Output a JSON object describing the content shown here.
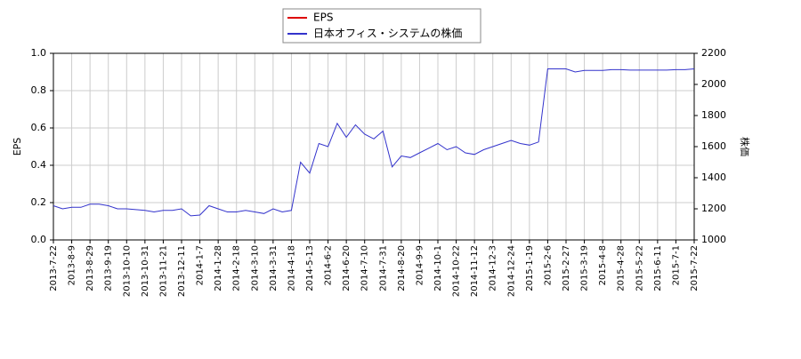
{
  "chart_data": {
    "type": "line",
    "categories": [
      "2013-7-22",
      null,
      "2013-8-9",
      null,
      "2013-8-29",
      null,
      "2013-9-19",
      null,
      "2013-10-10",
      null,
      "2013-10-31",
      null,
      "2013-11-21",
      null,
      "2013-12-11",
      null,
      "2014-1-7",
      null,
      "2014-1-28",
      null,
      "2014-2-18",
      null,
      "2014-3-10",
      null,
      "2014-3-31",
      null,
      "2014-4-18",
      null,
      "2014-5-13",
      null,
      "2014-6-2",
      null,
      "2014-6-20",
      null,
      "2014-7-10",
      null,
      "2014-7-31",
      null,
      "2014-8-20",
      null,
      "2014-9-9",
      null,
      "2014-10-1",
      null,
      "2014-10-22",
      null,
      "2014-11-12",
      null,
      "2014-12-3",
      null,
      "2014-12-24",
      null,
      "2015-1-19",
      null,
      "2015-2-6",
      null,
      "2015-2-27",
      null,
      "2015-3-19",
      null,
      "2015-4-8",
      null,
      "2015-4-28",
      null,
      "2015-5-22",
      null,
      "2015-6-11",
      null,
      "2015-7-1",
      null,
      "2015-7-22"
    ],
    "series": [
      {
        "name": "EPS",
        "color": "#dd0000",
        "values": [
          null,
          null,
          null,
          null,
          null,
          null,
          null,
          null,
          null,
          null,
          null,
          null,
          null,
          null,
          null,
          null,
          null,
          null,
          null,
          null,
          null,
          null,
          null,
          null,
          null,
          null,
          null,
          null,
          null,
          null,
          null,
          null,
          null,
          null,
          null,
          null,
          null,
          null,
          null,
          null,
          null,
          null,
          null,
          null,
          null,
          null,
          null,
          null,
          null,
          null,
          null,
          null,
          null,
          null,
          null,
          null,
          null,
          null,
          null,
          null,
          null,
          null,
          null,
          null,
          null,
          null,
          null,
          null,
          null,
          null,
          null
        ]
      },
      {
        "name": "日本オフィス・システムの株価",
        "color": "#3333cc",
        "axis": "y2",
        "values": [
          1220,
          1200,
          1210,
          1210,
          1230,
          1230,
          1220,
          1200,
          1200,
          1195,
          1190,
          1180,
          1190,
          1190,
          1200,
          1155,
          1160,
          1220,
          1200,
          1180,
          1180,
          1190,
          1180,
          1170,
          1200,
          1180,
          1190,
          1500,
          1430,
          1620,
          1600,
          1750,
          1660,
          1740,
          1680,
          1650,
          1700,
          1470,
          1540,
          1530,
          1560,
          1590,
          1620,
          1580,
          1600,
          1560,
          1550,
          1580,
          1600,
          1620,
          1640,
          1620,
          1610,
          1630,
          2100,
          2100,
          2100,
          2080,
          2090,
          2090,
          2090,
          2095,
          2095,
          2092,
          2092,
          2092,
          2092,
          2092,
          2095,
          2095,
          2100
        ]
      }
    ],
    "y_label": "EPS",
    "y2_label": "株価",
    "ylim": [
      0,
      1
    ],
    "yticks": [
      {
        "value": 0,
        "label": "0.0"
      },
      {
        "value": 0.2,
        "label": "0.2"
      },
      {
        "value": 0.4,
        "label": "0.4"
      },
      {
        "value": 0.6,
        "label": "0.6"
      },
      {
        "value": 0.8,
        "label": "0.8"
      },
      {
        "value": 1,
        "label": "1.0"
      }
    ],
    "y2lim": [
      1000,
      2200
    ],
    "y2ticks": [
      1000,
      1200,
      1400,
      1600,
      1800,
      2000,
      2200
    ],
    "grid": true
  }
}
